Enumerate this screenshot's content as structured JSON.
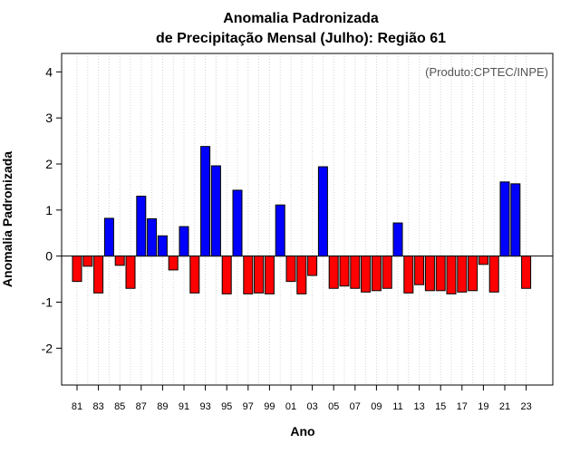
{
  "chart_data": {
    "type": "bar",
    "title_line1": "Anomalia Padronizada",
    "title_line2": "de Precipitação Mensal (Julho): Região 61",
    "xlabel": "Ano",
    "ylabel": "Anomalia Padronizada",
    "credit": "(Produto:CPTEC/INPE)",
    "ylim": [
      -2.8,
      4.4
    ],
    "yticks": [
      -2,
      -1,
      0,
      1,
      2,
      3,
      4
    ],
    "categories": [
      "81",
      "82",
      "83",
      "84",
      "85",
      "86",
      "87",
      "88",
      "89",
      "90",
      "91",
      "92",
      "93",
      "94",
      "95",
      "96",
      "97",
      "98",
      "99",
      "00",
      "01",
      "02",
      "03",
      "04",
      "05",
      "06",
      "07",
      "08",
      "09",
      "10",
      "11",
      "12",
      "13",
      "14",
      "15",
      "16",
      "17",
      "18",
      "19",
      "20",
      "21",
      "22",
      "23"
    ],
    "xtick_labels": [
      "81",
      "83",
      "85",
      "87",
      "89",
      "91",
      "93",
      "95",
      "97",
      "99",
      "01",
      "03",
      "05",
      "07",
      "09",
      "11",
      "13",
      "15",
      "17",
      "19",
      "21",
      "23"
    ],
    "values": [
      -0.55,
      -0.22,
      -0.8,
      0.82,
      -0.2,
      -0.7,
      1.3,
      0.81,
      0.44,
      -0.3,
      0.64,
      -0.8,
      2.38,
      1.96,
      -0.82,
      1.43,
      -0.82,
      -0.8,
      -0.82,
      1.11,
      -0.55,
      -0.82,
      -0.42,
      1.94,
      -0.7,
      -0.65,
      -0.7,
      -0.78,
      -0.75,
      -0.7,
      0.72,
      -0.8,
      -0.62,
      -0.75,
      -0.75,
      -0.82,
      -0.78,
      -0.75,
      -0.18,
      -0.78,
      1.61,
      1.57,
      -0.7
    ],
    "positive_color": "#0000ff",
    "negative_color": "#ff0000",
    "grid": true
  }
}
